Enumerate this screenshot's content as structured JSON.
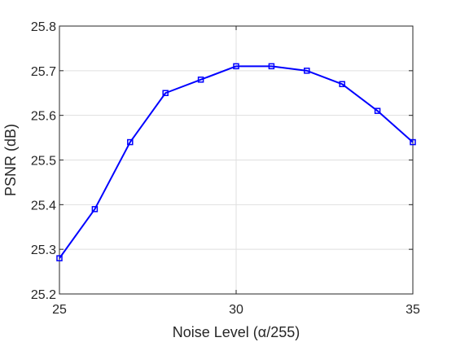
{
  "chart_data": {
    "type": "line",
    "title": "",
    "xlabel": "Noise Level (α/255)",
    "ylabel": "PSNR (dB)",
    "xlim": [
      25,
      35
    ],
    "ylim": [
      25.2,
      25.8
    ],
    "xticks": [
      25,
      30,
      35
    ],
    "xtick_labels": [
      "25",
      "30",
      "35"
    ],
    "yticks": [
      25.2,
      25.3,
      25.4,
      25.5,
      25.6,
      25.7,
      25.8
    ],
    "ytick_labels": [
      "25.2",
      "25.3",
      "25.4",
      "25.5",
      "25.6",
      "25.7",
      "25.8"
    ],
    "grid": true,
    "legend": false,
    "series": [
      {
        "color": "#0000ff",
        "marker": "square",
        "x": [
          25,
          26,
          27,
          28,
          29,
          30,
          31,
          32,
          33,
          34,
          35
        ],
        "y": [
          25.28,
          25.39,
          25.54,
          25.65,
          25.68,
          25.71,
          25.71,
          25.7,
          25.67,
          25.61,
          25.54
        ]
      }
    ]
  }
}
